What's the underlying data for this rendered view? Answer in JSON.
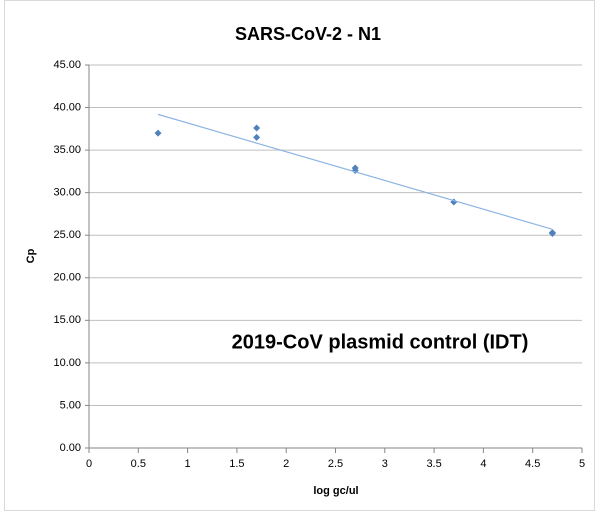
{
  "chart_data": {
    "type": "scatter",
    "title": "SARS-CoV-2 - N1",
    "x_label": "log gc/ul",
    "y_label": "Cp",
    "annotation": "2019-CoV plasmid control (IDT)",
    "series": [
      {
        "type": "scatter",
        "color": "#4f81bd",
        "x": [
          0.7,
          1.7,
          1.7,
          2.7,
          2.7,
          3.7,
          4.7,
          4.7
        ],
        "values": [
          37.0,
          37.6,
          36.5,
          32.9,
          32.6,
          28.9,
          25.3,
          25.2
        ]
      },
      {
        "type": "line",
        "color": "#8db4e2",
        "x": [
          0.7,
          4.7
        ],
        "values": [
          39.2,
          25.7
        ]
      }
    ],
    "xlim": [
      0,
      5
    ],
    "xticks": [
      0,
      0.5,
      1,
      1.5,
      2,
      2.5,
      3,
      3.5,
      4,
      4.5,
      5
    ],
    "ylim": [
      0,
      45
    ],
    "yticks": [
      {
        "value": 0,
        "label": "0.00"
      },
      {
        "value": 5,
        "label": "5.00"
      },
      {
        "value": 10,
        "label": "10.00"
      },
      {
        "value": 15,
        "label": "15.00"
      },
      {
        "value": 20,
        "label": "20.00"
      },
      {
        "value": 25,
        "label": "25.00"
      },
      {
        "value": 30,
        "label": "30.00"
      },
      {
        "value": 35,
        "label": "35.00"
      },
      {
        "value": 40,
        "label": "40.00"
      },
      {
        "value": 45,
        "label": "45.00"
      }
    ],
    "grid": true
  }
}
